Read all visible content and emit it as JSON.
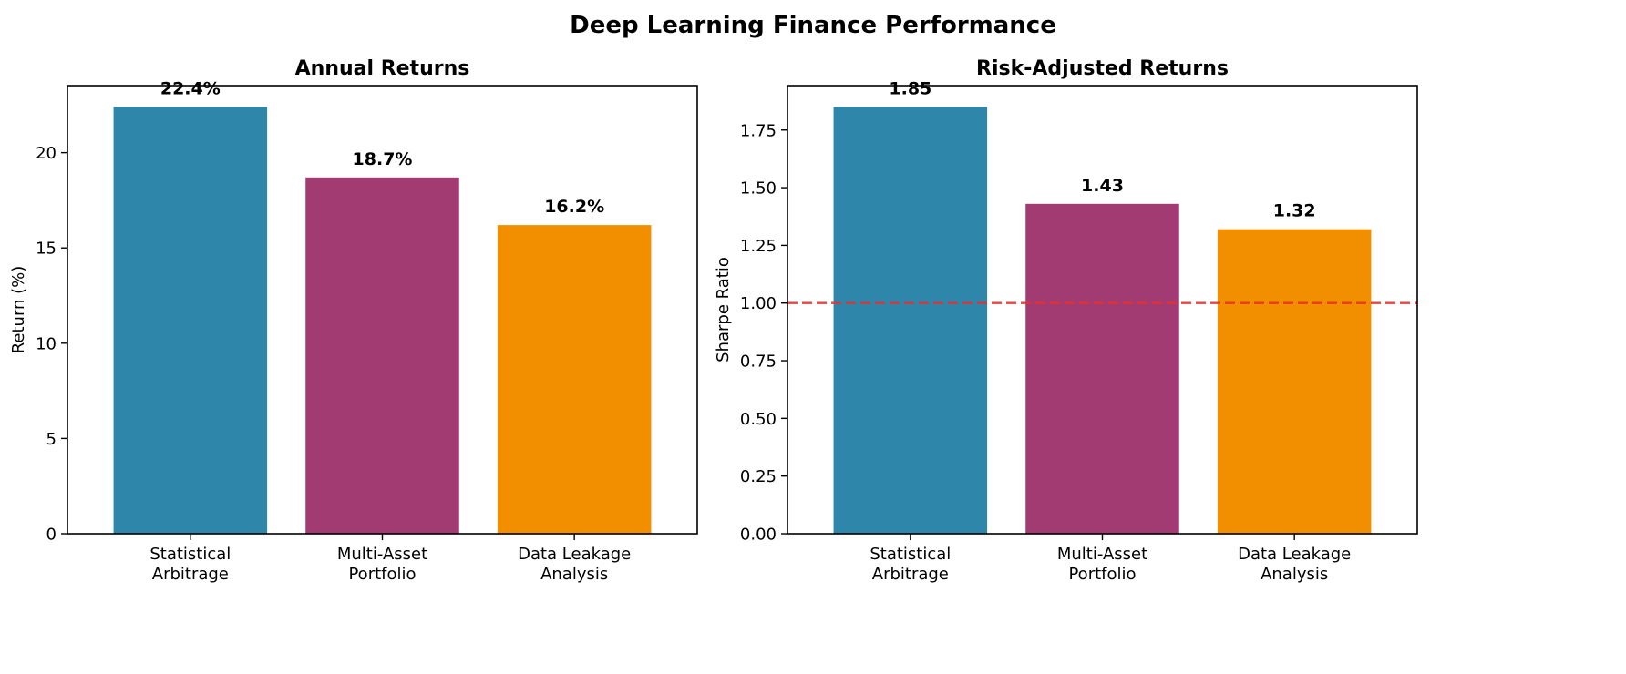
{
  "figure": {
    "title": "Deep Learning Finance Performance"
  },
  "chart_data": [
    {
      "type": "bar",
      "title": "Annual Returns",
      "xlabel": "",
      "ylabel": "Return (%)",
      "categories": [
        [
          "Statistical",
          "Arbitrage"
        ],
        [
          "Multi-Asset",
          "Portfolio"
        ],
        [
          "Data Leakage",
          "Analysis"
        ]
      ],
      "values": [
        22.4,
        18.7,
        16.2
      ],
      "data_labels": [
        "22.4%",
        "18.7%",
        "16.2%"
      ],
      "colors": [
        "#2E86AB",
        "#A23B72",
        "#F18F01"
      ],
      "ylim": [
        0,
        23.52
      ],
      "yticks": [
        0,
        5,
        10,
        15,
        20
      ],
      "ytick_labels": [
        "0",
        "5",
        "10",
        "15",
        "20"
      ],
      "grid": false,
      "reference_line": null
    },
    {
      "type": "bar",
      "title": "Risk-Adjusted Returns",
      "xlabel": "",
      "ylabel": "Sharpe Ratio",
      "categories": [
        [
          "Statistical",
          "Arbitrage"
        ],
        [
          "Multi-Asset",
          "Portfolio"
        ],
        [
          "Data Leakage",
          "Analysis"
        ]
      ],
      "values": [
        1.85,
        1.43,
        1.32
      ],
      "data_labels": [
        "1.85",
        "1.43",
        "1.32"
      ],
      "colors": [
        "#2E86AB",
        "#A23B72",
        "#F18F01"
      ],
      "ylim": [
        0,
        1.9425
      ],
      "yticks": [
        0,
        0.25,
        0.5,
        0.75,
        1.0,
        1.25,
        1.5,
        1.75
      ],
      "ytick_labels": [
        "0.00",
        "0.25",
        "0.50",
        "0.75",
        "1.00",
        "1.25",
        "1.50",
        "1.75"
      ],
      "grid": false,
      "reference_line": {
        "y": 1.0,
        "style": "dashed",
        "color": "#E8302A"
      }
    }
  ]
}
